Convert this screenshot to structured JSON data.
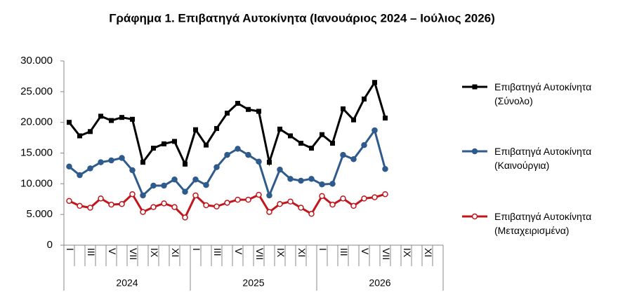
{
  "chart_data": {
    "type": "line",
    "title": "Γράφημα 1. Επιβατηγά Αυτοκίνητα (Ιανουάριος 2024 – Ιούλιος 2026)",
    "categories": [
      "I",
      null,
      "III",
      null,
      "V",
      null,
      "VII",
      null,
      "IX",
      null,
      "XI",
      null,
      "I",
      null,
      "III",
      null,
      "V",
      null,
      "VII",
      null,
      "IX",
      null,
      "XI",
      null,
      "I",
      null,
      "III",
      null,
      "V",
      null,
      "VII",
      null,
      "IX",
      null,
      "XI",
      null
    ],
    "groups": [
      "2024",
      "2025",
      "2026"
    ],
    "ylim": [
      0,
      30000
    ],
    "yticks": [
      {
        "value": 0,
        "label": "0"
      },
      {
        "value": 5000,
        "label": "5.000"
      },
      {
        "value": 10000,
        "label": "10.000"
      },
      {
        "value": 15000,
        "label": "15.000"
      },
      {
        "value": 20000,
        "label": "20.000"
      },
      {
        "value": 25000,
        "label": "25.000"
      },
      {
        "value": 30000,
        "label": "30.000"
      }
    ],
    "series": [
      {
        "name": "Επιβατηγά Αυτοκίνητα (Σύνολο)",
        "color": "#000000",
        "marker": "square",
        "values": [
          20000,
          17800,
          18500,
          21000,
          20300,
          20800,
          20500,
          13500,
          15800,
          16500,
          16900,
          13200,
          18800,
          16300,
          19000,
          21500,
          23100,
          22100,
          21800,
          13500,
          18900,
          17800,
          16600,
          15800,
          18000,
          16600,
          22200,
          20400,
          23800,
          26500,
          20700,
          null,
          null,
          null,
          null,
          null
        ]
      },
      {
        "name": "Επιβατηγά Αυτοκίνητα (Καινούργια)",
        "color": "#2f5a8c",
        "marker": "circle",
        "values": [
          12800,
          11400,
          12500,
          13500,
          13800,
          14200,
          12200,
          8100,
          9700,
          9700,
          10700,
          8700,
          10700,
          9800,
          12700,
          14700,
          15700,
          14700,
          13600,
          8100,
          12300,
          10800,
          10500,
          10800,
          9900,
          10000,
          14700,
          14000,
          16300,
          18700,
          12400,
          null,
          null,
          null,
          null,
          null
        ]
      },
      {
        "name": "Επιβατηγά Αυτοκίνητα (Μεταχειρισμένα)",
        "color": "#c0161c",
        "marker": "open-circle",
        "values": [
          7200,
          6400,
          6100,
          7600,
          6600,
          6700,
          8300,
          5400,
          6200,
          6800,
          6200,
          4500,
          8100,
          6500,
          6300,
          6900,
          7400,
          7400,
          8200,
          5400,
          6700,
          7100,
          6100,
          5100,
          8000,
          6600,
          7600,
          6400,
          7600,
          7800,
          8300,
          null,
          null,
          null,
          null,
          null
        ]
      }
    ]
  }
}
